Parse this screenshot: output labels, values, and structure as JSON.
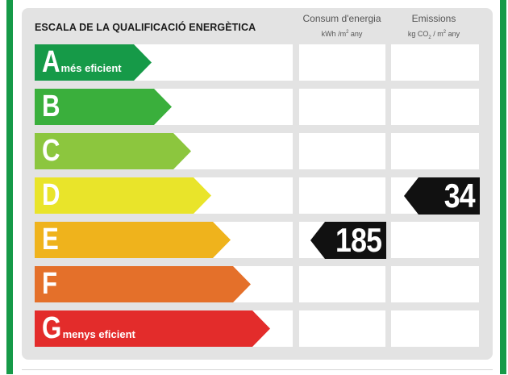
{
  "title": "ESCALA DE LA QUALIFICACIÓ ENERGÈTICA",
  "columns": {
    "consumption": {
      "label": "Consum d'energia",
      "unit_prefix": "kWh /m",
      "unit_exp": "2",
      "unit_suffix": " any"
    },
    "emissions": {
      "label": "Emissions",
      "unit_prefix": "kg CO",
      "unit_sub": "2",
      "unit_mid": " / m",
      "unit_exp": "2",
      "unit_suffix": " any"
    }
  },
  "ratings": [
    {
      "letter": "A",
      "desc": "més eficient",
      "color": "#169a48"
    },
    {
      "letter": "B",
      "desc": "",
      "color": "#3aaf3c"
    },
    {
      "letter": "C",
      "desc": "",
      "color": "#8cc63e"
    },
    {
      "letter": "D",
      "desc": "",
      "color": "#e9e42a"
    },
    {
      "letter": "E",
      "desc": "",
      "color": "#efb31c"
    },
    {
      "letter": "F",
      "desc": "",
      "color": "#e4702a"
    },
    {
      "letter": "G",
      "desc": "menys eficient",
      "color": "#e32c2b"
    }
  ],
  "consumption_value": "185",
  "consumption_rating": "E",
  "emissions_value": "34",
  "emissions_rating": "D"
}
